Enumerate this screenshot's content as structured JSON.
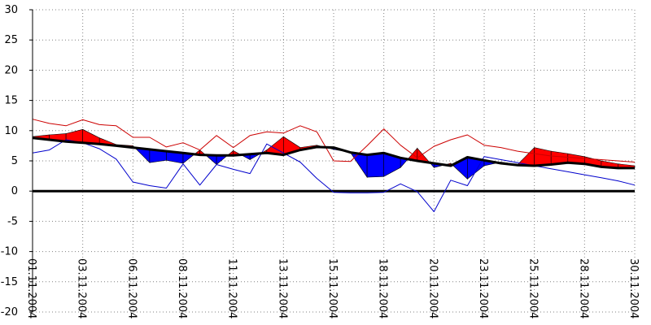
{
  "chart_data": {
    "type": "area",
    "title": "",
    "xlabel": "",
    "ylabel": "",
    "ylim": [
      -20,
      30
    ],
    "yticks": [
      30,
      25,
      20,
      15,
      10,
      5,
      0,
      -5,
      -10,
      -15,
      -20
    ],
    "grid": true,
    "xtick_labels": [
      "01.11.2004",
      "03.11.2004",
      "06.11.2004",
      "08.11.2004",
      "11.11.2004",
      "13.11.2004",
      "15.11.2004",
      "18.11.2004",
      "20.11.2004",
      "23.11.2004",
      "25.11.2004",
      "28.11.2004",
      "30.11.2004"
    ],
    "xtick_days": [
      1,
      3.1,
      5.2,
      7.3,
      9.4,
      11.5,
      13.6,
      15.7,
      17.8,
      19.9,
      22.0,
      24.1,
      26.2
    ],
    "colors": {
      "above": "#ff0000",
      "below": "#0000ff",
      "reference": "#000000",
      "upper_line": "#cc0000",
      "lower_line": "#0000cc",
      "grid": "#808080",
      "zero_line": "#000000"
    },
    "series": [
      {
        "x": [
          1,
          1.7,
          2.4,
          3.1,
          3.8,
          4.5,
          5.2,
          5.9,
          6.6,
          7.3,
          8.0,
          8.7,
          9.4,
          10.1,
          10.8,
          11.5,
          12.2,
          12.9,
          13.6,
          14.3,
          15.0,
          15.7,
          16.4,
          17.1,
          17.8,
          18.5,
          19.2,
          19.9,
          20.6,
          21.3,
          22.0,
          22.7,
          23.4,
          24.1,
          24.8,
          25.5,
          26.2
        ],
        "values": [
          8.8,
          8.5,
          8.2,
          8.0,
          7.8,
          7.5,
          7.2,
          6.9,
          6.6,
          6.3,
          6.0,
          5.9,
          5.9,
          6.1,
          6.3,
          6.0,
          6.8,
          7.3,
          7.2,
          6.4,
          6.0,
          6.3,
          5.5,
          5.0,
          4.6,
          4.2,
          5.6,
          5.1,
          4.6,
          4.3,
          4.2,
          4.4,
          4.7,
          4.5,
          4.0,
          3.8,
          3.8
        ]
      },
      {
        "x": [
          1,
          1.7,
          2.4,
          3.1,
          3.8,
          4.5,
          5.2,
          5.9,
          6.6,
          7.3,
          8.0,
          8.7,
          9.4,
          10.1,
          10.8,
          11.5,
          12.2,
          12.9,
          13.6,
          14.3,
          15.0,
          15.7,
          16.4,
          17.1,
          17.8,
          18.5,
          19.2,
          19.9,
          20.6,
          21.3,
          22.0,
          22.7,
          23.4,
          24.1,
          24.8,
          25.5,
          26.2
        ],
        "values": [
          9.0,
          9.3,
          9.5,
          10.2,
          8.8,
          7.7,
          7.5,
          4.7,
          5.1,
          4.6,
          6.8,
          4.4,
          6.7,
          5.2,
          6.8,
          9.0,
          7.2,
          7.6,
          6.9,
          6.4,
          2.3,
          2.4,
          3.9,
          7.1,
          3.9,
          4.6,
          2.0,
          4.2,
          4.8,
          4.4,
          7.2,
          6.6,
          6.2,
          5.7,
          5.0,
          4.5,
          4.2
        ]
      },
      {
        "x": [
          1,
          1.7,
          2.4,
          3.1,
          3.8,
          4.5,
          5.2,
          5.9,
          6.6,
          7.3,
          8.0,
          8.7,
          9.4,
          10.1,
          10.8,
          11.5,
          12.2,
          12.9,
          13.6,
          14.3,
          15.0,
          15.7,
          16.4,
          17.1,
          17.8,
          18.5,
          19.2,
          19.9,
          20.6,
          21.3,
          22.0,
          22.7,
          23.4,
          24.1,
          24.8,
          25.5,
          26.2
        ],
        "values": [
          11.9,
          11.2,
          10.8,
          11.8,
          11.0,
          10.8,
          8.9,
          8.9,
          7.3,
          8.0,
          6.8,
          9.2,
          7.2,
          9.2,
          9.8,
          9.6,
          10.8,
          9.8,
          5.0,
          4.9,
          7.5,
          10.3,
          7.6,
          5.5,
          7.4,
          8.5,
          9.3,
          7.6,
          7.2,
          6.6,
          6.2,
          5.8,
          5.6,
          5.4,
          5.2,
          5.0,
          4.8
        ]
      },
      {
        "x": [
          1,
          1.7,
          2.4,
          3.1,
          3.8,
          4.5,
          5.2,
          5.9,
          6.6,
          7.3,
          8.0,
          8.7,
          9.4,
          10.1,
          10.8,
          11.5,
          12.2,
          12.9,
          13.6,
          14.3,
          15.0,
          15.7,
          16.4,
          17.1,
          17.8,
          18.5,
          19.2,
          19.9,
          20.6,
          21.3,
          22.0,
          22.7,
          23.4,
          24.1,
          24.8,
          25.5,
          26.2
        ],
        "values": [
          6.3,
          6.8,
          8.5,
          8.0,
          7.0,
          5.3,
          1.5,
          0.9,
          0.5,
          4.5,
          1.0,
          4.4,
          3.6,
          2.9,
          7.8,
          6.3,
          4.8,
          2.1,
          -0.2,
          -0.3,
          -0.3,
          -0.2,
          1.2,
          -0.1,
          -3.4,
          1.8,
          0.9,
          5.7,
          5.2,
          4.7,
          4.2,
          3.7,
          3.2,
          2.7,
          2.2,
          1.7,
          1.0
        ]
      }
    ]
  }
}
